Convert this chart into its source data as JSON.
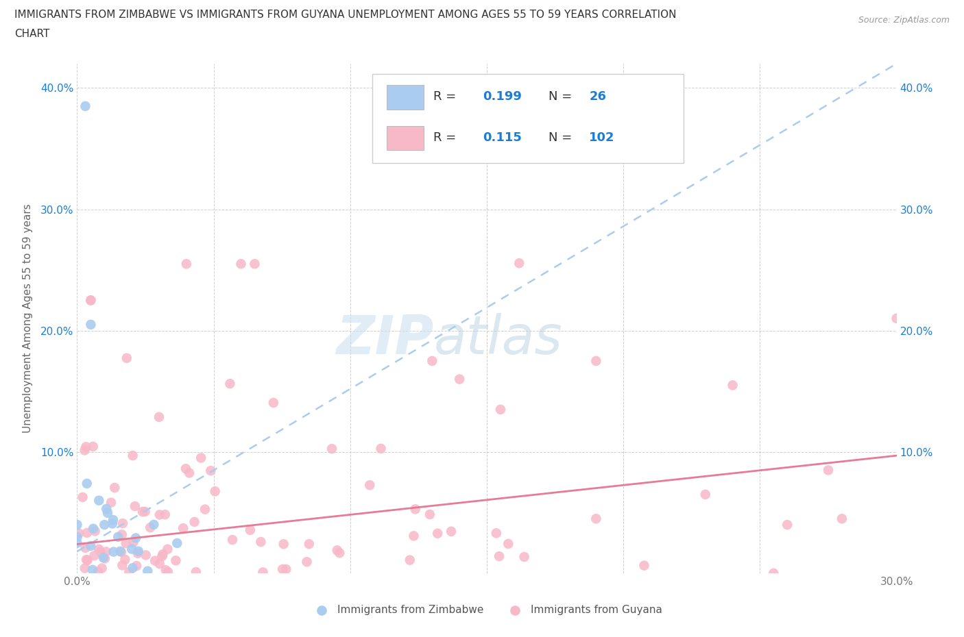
{
  "title_line1": "IMMIGRANTS FROM ZIMBABWE VS IMMIGRANTS FROM GUYANA UNEMPLOYMENT AMONG AGES 55 TO 59 YEARS CORRELATION",
  "title_line2": "CHART",
  "source": "Source: ZipAtlas.com",
  "ylabel": "Unemployment Among Ages 55 to 59 years",
  "xlim": [
    0.0,
    0.3
  ],
  "ylim": [
    0.0,
    0.42
  ],
  "zimbabwe_color": "#aaccf0",
  "zimbabwe_edge": "#7eb8f7",
  "guyana_color": "#f7b8c8",
  "guyana_edge": "#f088a0",
  "zim_line_color": "#aaccf0",
  "guy_line_color": "#e87a95",
  "zimbabwe_R": 0.199,
  "zimbabwe_N": 26,
  "guyana_R": 0.115,
  "guyana_N": 102,
  "legend_text_color": "#1a7fd4",
  "grid_color": "#bbbbbb",
  "background_color": "#ffffff",
  "tick_color": "#777777",
  "ytick_color": "#1a7fd4"
}
